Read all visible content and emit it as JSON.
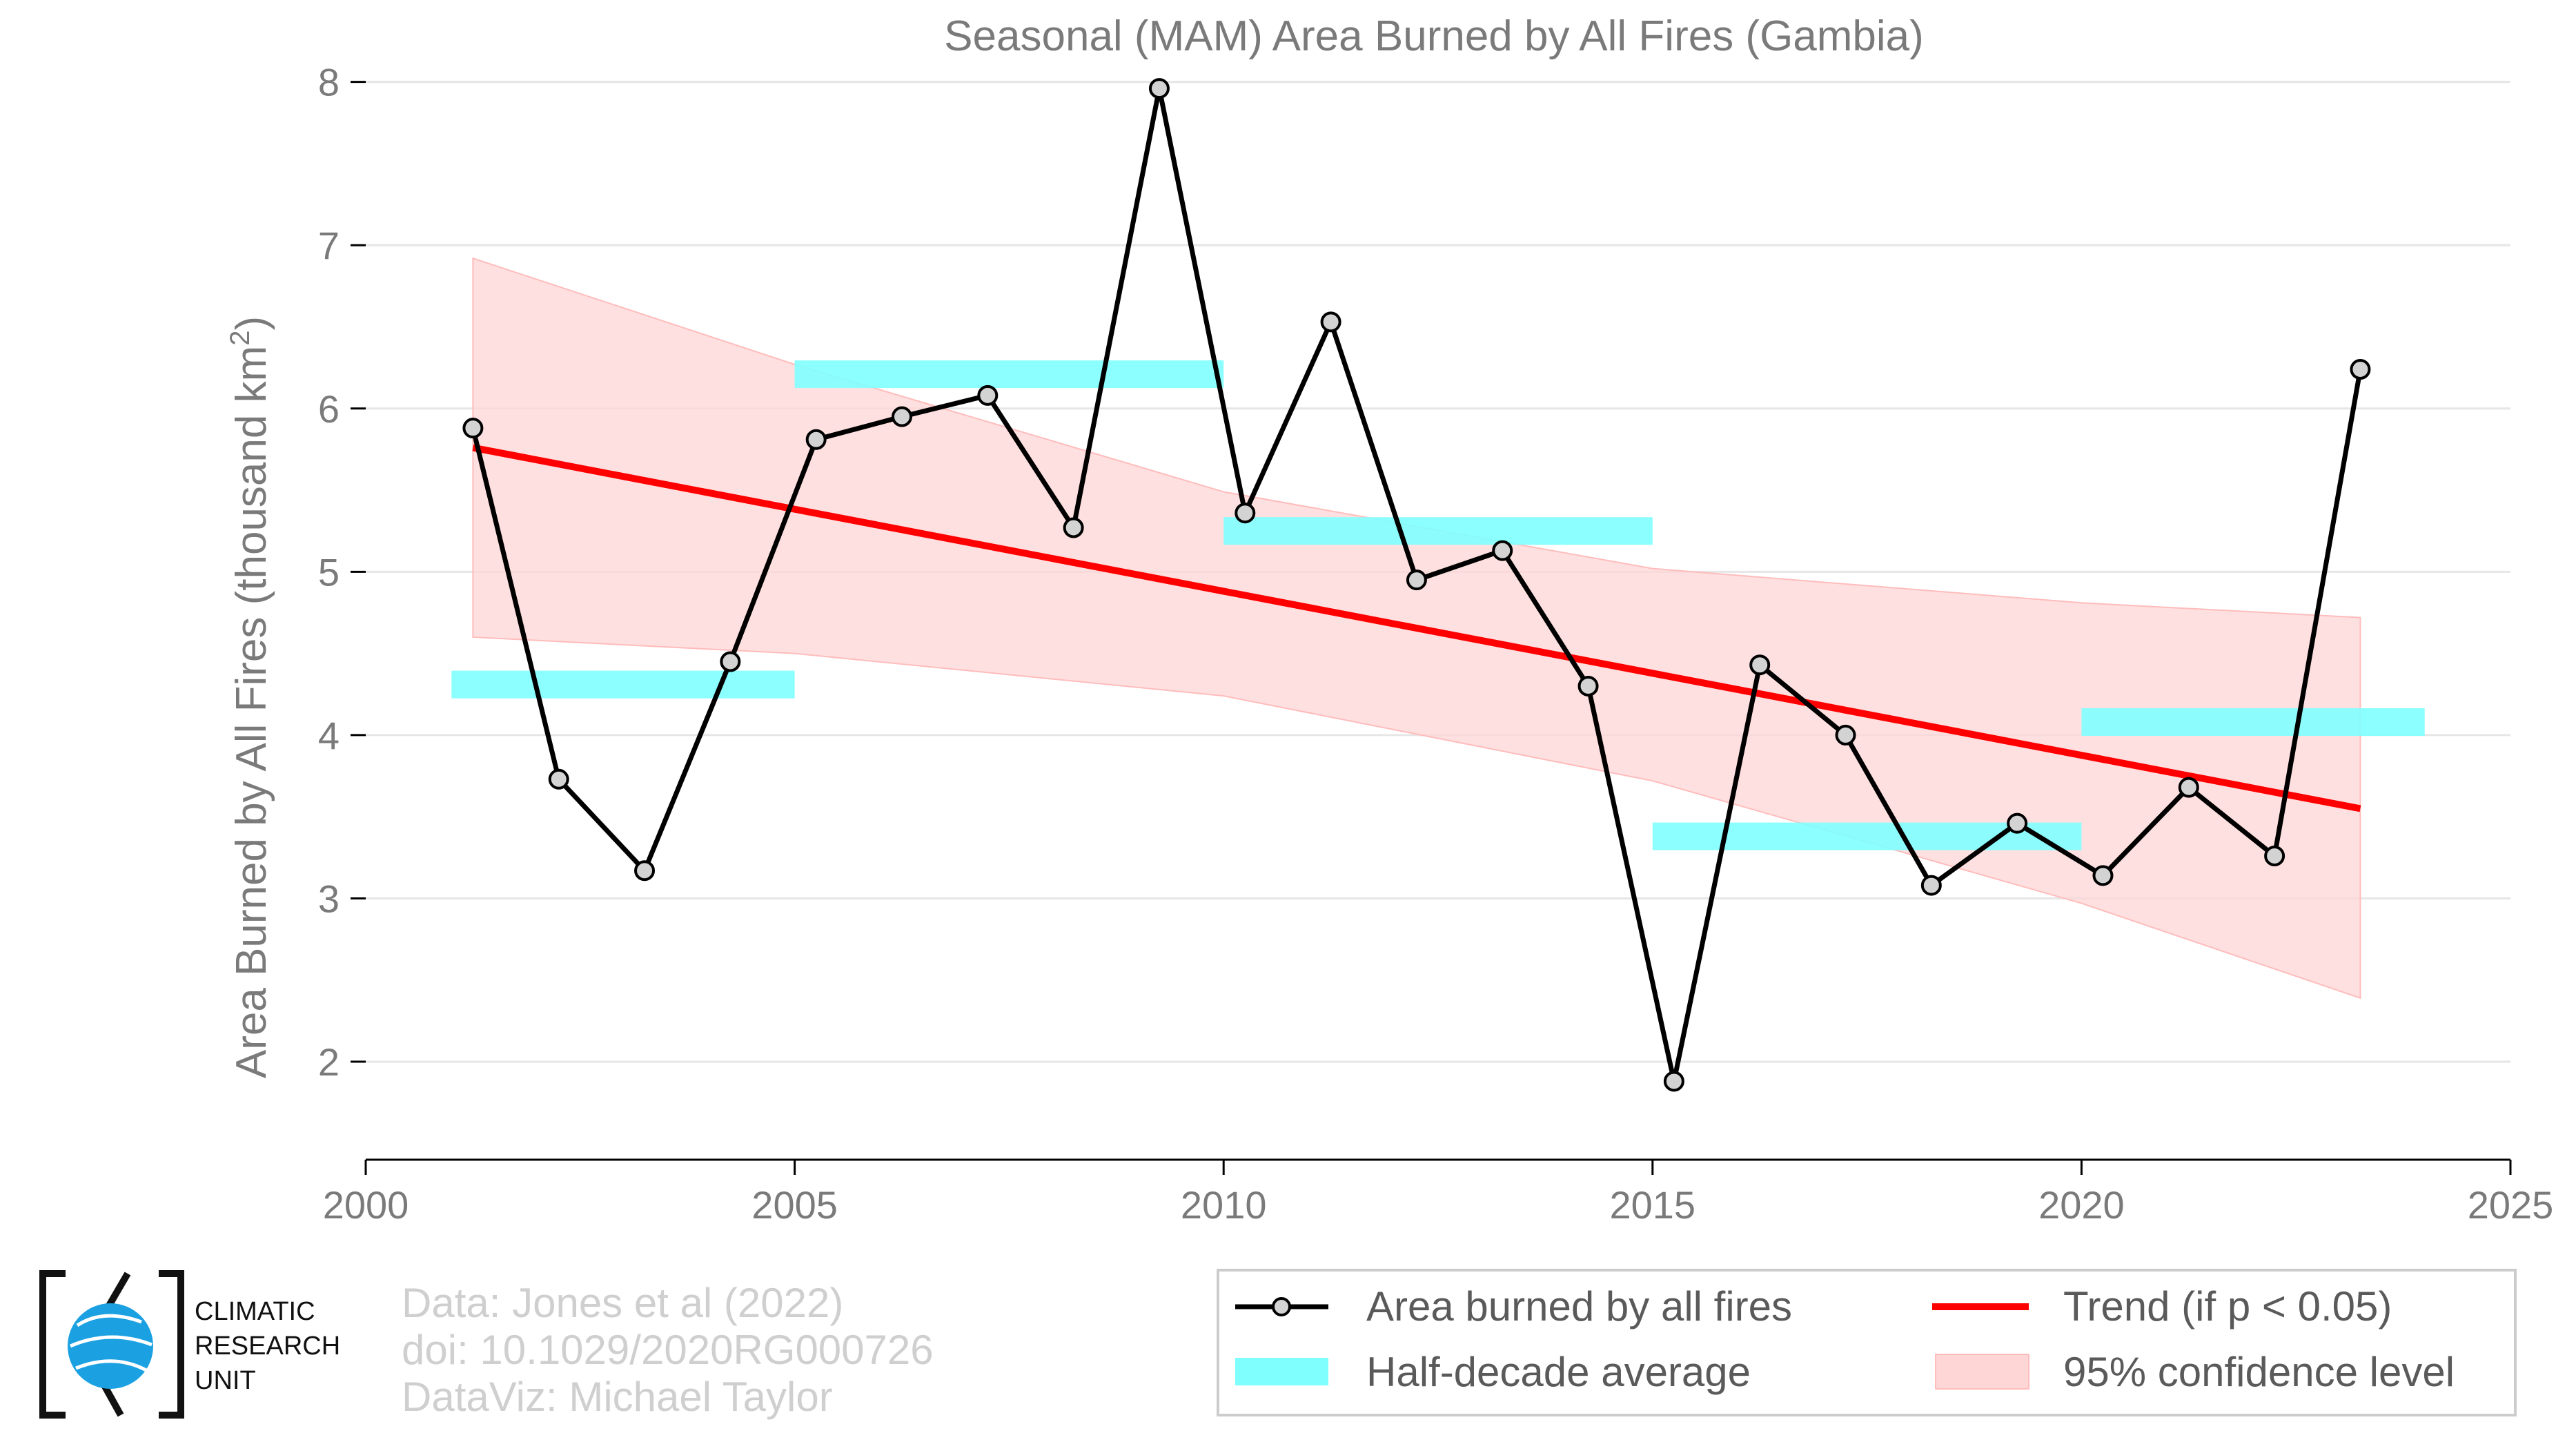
{
  "chart_data": {
    "type": "line",
    "title": "Seasonal (MAM) Area Burned by All Fires (Gambia)",
    "ylabel": "Area Burned by All Fires (thousand km",
    "ylabel_sup": "2",
    "ylabel_end": ")",
    "xlim": [
      2000,
      2025
    ],
    "ylim": [
      1.4,
      8.1
    ],
    "x_ticks": [
      2000,
      2005,
      2010,
      2015,
      2020,
      2025
    ],
    "y_ticks": [
      2,
      3,
      4,
      5,
      6,
      7,
      8
    ],
    "grid": "horizontal",
    "series": [
      {
        "name": "Area burned by all fires",
        "color": "#000000",
        "marker_fill": "#d3d3d3",
        "x": [
          2001.25,
          2002.25,
          2003.25,
          2004.25,
          2005.25,
          2006.25,
          2007.25,
          2008.25,
          2009.25,
          2010.25,
          2011.25,
          2012.25,
          2013.25,
          2014.25,
          2015.25,
          2016.25,
          2017.25,
          2018.25,
          2019.25,
          2020.25,
          2021.25,
          2022.25,
          2023.25
        ],
        "y": [
          5.88,
          3.73,
          3.17,
          4.45,
          5.81,
          5.95,
          6.08,
          5.27,
          7.96,
          5.36,
          6.53,
          4.95,
          5.13,
          4.3,
          1.88,
          4.43,
          4.0,
          3.08,
          3.46,
          3.14,
          3.68,
          3.26,
          6.24
        ]
      }
    ],
    "half_decade_average": {
      "name": "Half-decade average",
      "color": "#80ffff",
      "segments": [
        {
          "x0": 2001,
          "x1": 2005,
          "y": 4.31
        },
        {
          "x0": 2005,
          "x1": 2010,
          "y": 6.21
        },
        {
          "x0": 2010,
          "x1": 2015,
          "y": 5.25
        },
        {
          "x0": 2015,
          "x1": 2020,
          "y": 3.38
        },
        {
          "x0": 2020,
          "x1": 2024,
          "y": 4.08
        }
      ]
    },
    "trend": {
      "name": "Trend (if p < 0.05)",
      "color": "#ff0000",
      "x": [
        2001.25,
        2023.25
      ],
      "y": [
        5.76,
        3.55
      ]
    },
    "confidence_band": {
      "name": "95% confidence level",
      "color": "#ffd6d6",
      "x": [
        2001.25,
        2005,
        2010,
        2015,
        2020,
        2023.25
      ],
      "upper": [
        6.92,
        6.27,
        5.49,
        5.02,
        4.81,
        4.72
      ],
      "lower": [
        4.6,
        4.5,
        4.24,
        3.72,
        2.97,
        2.39
      ]
    },
    "legend": {
      "placement": "bottom-right",
      "items": [
        "Area burned by all fires",
        "Trend (if p < 0.05)",
        "Half-decade average",
        "95% confidence level"
      ]
    }
  },
  "credits": {
    "line1": "Data: Jones et al (2022)",
    "line2": "doi: 10.1029/2020RG000726",
    "line3": "DataViz: Michael Taylor"
  },
  "logo": {
    "line1": "CLIMATIC",
    "line2": "RESEARCH",
    "line3": "UNIT",
    "color": "#1ba1e2"
  }
}
